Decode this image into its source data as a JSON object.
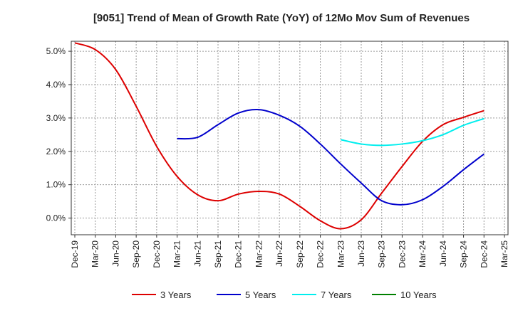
{
  "chart_data": {
    "type": "line",
    "title": "[9051]  Trend of Mean of Growth Rate (YoY) of 12Mo Mov Sum of Revenues",
    "xlabel": "",
    "ylabel": "",
    "categories": [
      "Dec-19",
      "Mar-20",
      "Jun-20",
      "Sep-20",
      "Dec-20",
      "Mar-21",
      "Jun-21",
      "Sep-21",
      "Dec-21",
      "Mar-22",
      "Jun-22",
      "Sep-22",
      "Dec-22",
      "Mar-23",
      "Jun-23",
      "Sep-23",
      "Dec-23",
      "Mar-24",
      "Jun-24",
      "Sep-24",
      "Dec-24",
      "Mar-25"
    ],
    "ylim": [
      -0.5,
      5.3
    ],
    "yticks": [
      0.0,
      1.0,
      2.0,
      3.0,
      4.0,
      5.0
    ],
    "ytick_labels": [
      "0.0%",
      "1.0%",
      "2.0%",
      "3.0%",
      "4.0%",
      "5.0%"
    ],
    "grid": true,
    "legend_position": "bottom",
    "series": [
      {
        "name": "3 Years",
        "color": "#dd0000",
        "values": [
          5.25,
          5.05,
          4.45,
          3.35,
          2.15,
          1.25,
          0.7,
          0.52,
          0.72,
          0.8,
          0.72,
          0.35,
          -0.08,
          -0.32,
          -0.05,
          0.75,
          1.55,
          2.3,
          2.8,
          3.02,
          3.22,
          null
        ]
      },
      {
        "name": "5 Years",
        "color": "#0000cc",
        "values": [
          null,
          null,
          null,
          null,
          null,
          2.38,
          2.42,
          2.8,
          3.15,
          3.25,
          3.08,
          2.75,
          2.22,
          1.62,
          1.05,
          0.52,
          0.4,
          0.55,
          0.95,
          1.45,
          1.92,
          null
        ]
      },
      {
        "name": "7 Years",
        "color": "#00eeee",
        "values": [
          null,
          null,
          null,
          null,
          null,
          null,
          null,
          null,
          null,
          null,
          null,
          null,
          null,
          2.35,
          2.22,
          2.18,
          2.22,
          2.32,
          2.5,
          2.78,
          2.98,
          null
        ]
      },
      {
        "name": "10 Years",
        "color": "#008000",
        "values": [
          null,
          null,
          null,
          null,
          null,
          null,
          null,
          null,
          null,
          null,
          null,
          null,
          null,
          null,
          null,
          null,
          null,
          null,
          null,
          null,
          null,
          null
        ]
      }
    ]
  }
}
